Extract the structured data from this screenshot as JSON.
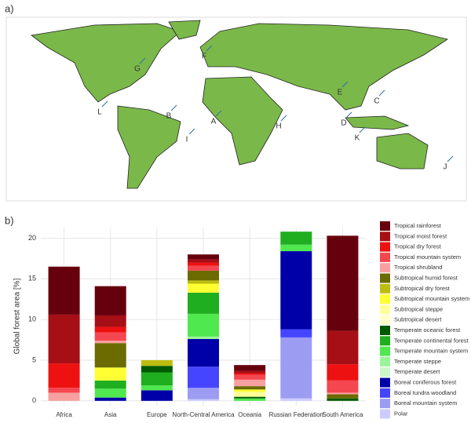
{
  "map": {
    "panel_label": "a)",
    "labels": [
      "A",
      "B",
      "C",
      "D",
      "E",
      "F",
      "G",
      "H",
      "I",
      "J",
      "K",
      "L"
    ]
  },
  "chart_data": {
    "type": "stacked-bar",
    "panel_label": "b)",
    "y_label": "Global forest area [%]",
    "categories": [
      "Africa",
      "Asia",
      "Europe",
      "North-Central America",
      "Oceania",
      "Russian Federation",
      "South America"
    ],
    "ylim": [
      -0.6,
      21.3
    ],
    "yticks": [
      0,
      5,
      10,
      15,
      20
    ],
    "grid": true,
    "series": [
      {
        "name": "Tropical rainforest",
        "color": "#67000d",
        "values": [
          5.9,
          3.6,
          0,
          0.6,
          0.7,
          0,
          11.7
        ]
      },
      {
        "name": "Tropical moist forest",
        "color": "#a50f15",
        "values": [
          6.0,
          1.4,
          0,
          0.4,
          0.3,
          0,
          4.1
        ]
      },
      {
        "name": "Tropical dry forest",
        "color": "#ee1111",
        "values": [
          3.0,
          0.7,
          0,
          0.4,
          0.2,
          0,
          2.0
        ]
      },
      {
        "name": "Tropical mountain system",
        "color": "#f5474f",
        "values": [
          0.6,
          1.0,
          0,
          0.6,
          0.6,
          0,
          1.5
        ]
      },
      {
        "name": "Tropical shrubland",
        "color": "#f8a0a0",
        "values": [
          1.0,
          0.3,
          0,
          0,
          0.8,
          0,
          0.2
        ]
      },
      {
        "name": "Subtropical humid forest",
        "color": "#6b6b00",
        "values": [
          0,
          3.0,
          0,
          1.2,
          0.4,
          0,
          0.5
        ]
      },
      {
        "name": "Subtropical dry forest",
        "color": "#bdbd10",
        "values": [
          0,
          0,
          0.7,
          0.4,
          0,
          0,
          0
        ]
      },
      {
        "name": "Subtropical mountain system",
        "color": "#ffff33",
        "values": [
          0,
          1.6,
          0,
          1.1,
          0.3,
          0,
          0
        ]
      },
      {
        "name": "Subtropical steppe",
        "color": "#ffff99",
        "values": [
          0,
          0,
          0,
          0,
          0.6,
          0,
          0
        ]
      },
      {
        "name": "Subtropical desert",
        "color": "#ffffcc",
        "values": [
          0,
          0,
          0,
          0,
          0,
          0,
          0
        ]
      },
      {
        "name": "Temperate oceanic forest",
        "color": "#005a00",
        "values": [
          0,
          0,
          0.8,
          0,
          0.2,
          0,
          0.3
        ]
      },
      {
        "name": "Temperate continental forest",
        "color": "#1fae1f",
        "values": [
          0,
          1.0,
          1.6,
          2.6,
          0,
          1.6,
          0
        ]
      },
      {
        "name": "Temperate mountain system",
        "color": "#4fe84f",
        "values": [
          0,
          1.1,
          0.6,
          2.8,
          0.3,
          0.8,
          0
        ]
      },
      {
        "name": "Temperate steppe",
        "color": "#9af59a",
        "values": [
          0,
          0,
          0,
          0.3,
          0,
          0,
          0
        ]
      },
      {
        "name": "Temperate desert",
        "color": "#ccf5cc",
        "values": [
          0,
          0,
          0,
          0,
          0,
          0,
          0
        ]
      },
      {
        "name": "Boreal coniferous forest",
        "color": "#0000a8",
        "values": [
          0,
          0.4,
          1.3,
          3.4,
          0,
          9.6,
          0
        ]
      },
      {
        "name": "Boreal tundra woodland",
        "color": "#4545ff",
        "values": [
          0,
          0,
          0,
          2.6,
          0,
          1.0,
          0
        ]
      },
      {
        "name": "Boreal mountain system",
        "color": "#9c9cf2",
        "values": [
          0,
          0,
          0,
          1.4,
          0,
          7.5,
          0
        ]
      },
      {
        "name": "Polar",
        "color": "#ccccff",
        "values": [
          0,
          0,
          0,
          0.2,
          0,
          0.3,
          0
        ]
      }
    ]
  }
}
